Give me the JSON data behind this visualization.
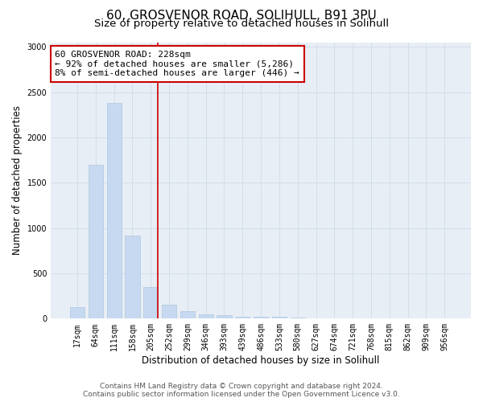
{
  "title1": "60, GROSVENOR ROAD, SOLIHULL, B91 3PU",
  "title2": "Size of property relative to detached houses in Solihull",
  "xlabel": "Distribution of detached houses by size in Solihull",
  "ylabel": "Number of detached properties",
  "categories": [
    "17sqm",
    "64sqm",
    "111sqm",
    "158sqm",
    "205sqm",
    "252sqm",
    "299sqm",
    "346sqm",
    "393sqm",
    "439sqm",
    "486sqm",
    "533sqm",
    "580sqm",
    "627sqm",
    "674sqm",
    "721sqm",
    "768sqm",
    "815sqm",
    "862sqm",
    "909sqm",
    "956sqm"
  ],
  "values": [
    130,
    1700,
    2380,
    920,
    350,
    155,
    85,
    50,
    35,
    25,
    20,
    20,
    15,
    0,
    0,
    0,
    0,
    0,
    0,
    0,
    0
  ],
  "bar_color": "#c6d9f0",
  "bar_edge_color": "#aec6e0",
  "vline_index": 4,
  "annotation_line1": "60 GROSVENOR ROAD: 228sqm",
  "annotation_line2": "← 92% of detached houses are smaller (5,286)",
  "annotation_line3": "8% of semi-detached houses are larger (446) →",
  "annotation_box_color": "#ffffff",
  "annotation_box_edge_color": "#cc0000",
  "vline_color": "#cc0000",
  "ylim": [
    0,
    3050
  ],
  "yticks": [
    0,
    500,
    1000,
    1500,
    2000,
    2500,
    3000
  ],
  "grid_color": "#d0dce8",
  "bg_color": "#e8eef5",
  "footer1": "Contains HM Land Registry data © Crown copyright and database right 2024.",
  "footer2": "Contains public sector information licensed under the Open Government Licence v3.0.",
  "title1_fontsize": 11,
  "title2_fontsize": 9.5,
  "xlabel_fontsize": 8.5,
  "ylabel_fontsize": 8.5,
  "tick_fontsize": 7,
  "annotation_fontsize": 8,
  "footer_fontsize": 6.5
}
